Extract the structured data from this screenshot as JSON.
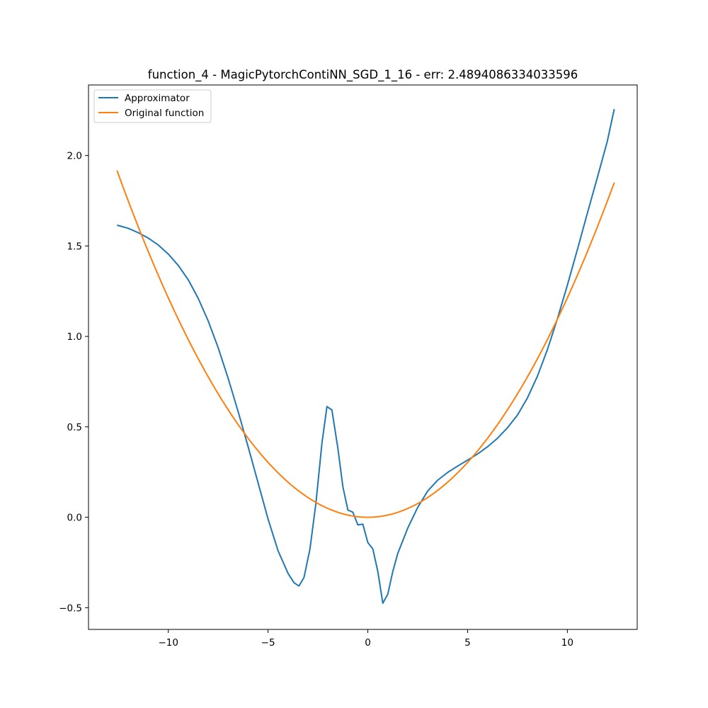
{
  "chart_data": {
    "type": "line",
    "title": "function_4 - MagicPytorchContiNN_SGD_1_16 - err: 2.4894086334033596",
    "xlabel": "",
    "ylabel": "",
    "xlim": [
      -14,
      13.5
    ],
    "ylim": [
      -0.62,
      2.39
    ],
    "xticks": [
      -10,
      -5,
      0,
      5,
      10
    ],
    "xtick_labels": [
      "−10",
      "−5",
      "0",
      "5",
      "10"
    ],
    "yticks": [
      -0.5,
      0.0,
      0.5,
      1.0,
      1.5,
      2.0
    ],
    "ytick_labels": [
      "−0.5",
      "0.0",
      "0.5",
      "1.0",
      "1.5",
      "2.0"
    ],
    "grid": false,
    "legend_position": "upper left",
    "series": [
      {
        "name": "Approximator",
        "color": "#1f77b4",
        "points": [
          [
            -12.57,
            1.615
          ],
          [
            -12.0,
            1.597
          ],
          [
            -11.5,
            1.573
          ],
          [
            -11.0,
            1.543
          ],
          [
            -10.5,
            1.505
          ],
          [
            -10.0,
            1.455
          ],
          [
            -9.5,
            1.392
          ],
          [
            -9.0,
            1.313
          ],
          [
            -8.5,
            1.21
          ],
          [
            -8.0,
            1.085
          ],
          [
            -7.5,
            0.937
          ],
          [
            -7.0,
            0.768
          ],
          [
            -6.5,
            0.584
          ],
          [
            -6.0,
            0.39
          ],
          [
            -5.5,
            0.19
          ],
          [
            -5.0,
            -0.01
          ],
          [
            -4.5,
            -0.185
          ],
          [
            -4.0,
            -0.31
          ],
          [
            -3.7,
            -0.362
          ],
          [
            -3.45,
            -0.38
          ],
          [
            -3.2,
            -0.333
          ],
          [
            -2.9,
            -0.175
          ],
          [
            -2.6,
            0.08
          ],
          [
            -2.3,
            0.41
          ],
          [
            -2.05,
            0.612
          ],
          [
            -1.8,
            0.593
          ],
          [
            -1.5,
            0.38
          ],
          [
            -1.25,
            0.168
          ],
          [
            -1.0,
            0.04
          ],
          [
            -0.75,
            0.028
          ],
          [
            -0.5,
            -0.042
          ],
          [
            -0.25,
            -0.038
          ],
          [
            0.0,
            -0.14
          ],
          [
            0.25,
            -0.175
          ],
          [
            0.5,
            -0.3
          ],
          [
            0.75,
            -0.475
          ],
          [
            1.0,
            -0.425
          ],
          [
            1.25,
            -0.3
          ],
          [
            1.5,
            -0.2
          ],
          [
            2.0,
            -0.06
          ],
          [
            2.5,
            0.055
          ],
          [
            3.0,
            0.145
          ],
          [
            3.5,
            0.205
          ],
          [
            4.0,
            0.248
          ],
          [
            4.5,
            0.283
          ],
          [
            5.0,
            0.316
          ],
          [
            5.5,
            0.35
          ],
          [
            6.0,
            0.39
          ],
          [
            6.5,
            0.437
          ],
          [
            7.0,
            0.495
          ],
          [
            7.5,
            0.565
          ],
          [
            8.0,
            0.66
          ],
          [
            8.5,
            0.78
          ],
          [
            9.0,
            0.927
          ],
          [
            9.5,
            1.097
          ],
          [
            10.0,
            1.283
          ],
          [
            10.5,
            1.479
          ],
          [
            11.0,
            1.68
          ],
          [
            11.5,
            1.877
          ],
          [
            12.0,
            2.078
          ],
          [
            12.35,
            2.257
          ]
        ]
      },
      {
        "name": "Original function",
        "color": "#ff7f0e",
        "formula_a": 0.01213,
        "x_start": -12.57,
        "x_end": 12.35
      }
    ]
  }
}
